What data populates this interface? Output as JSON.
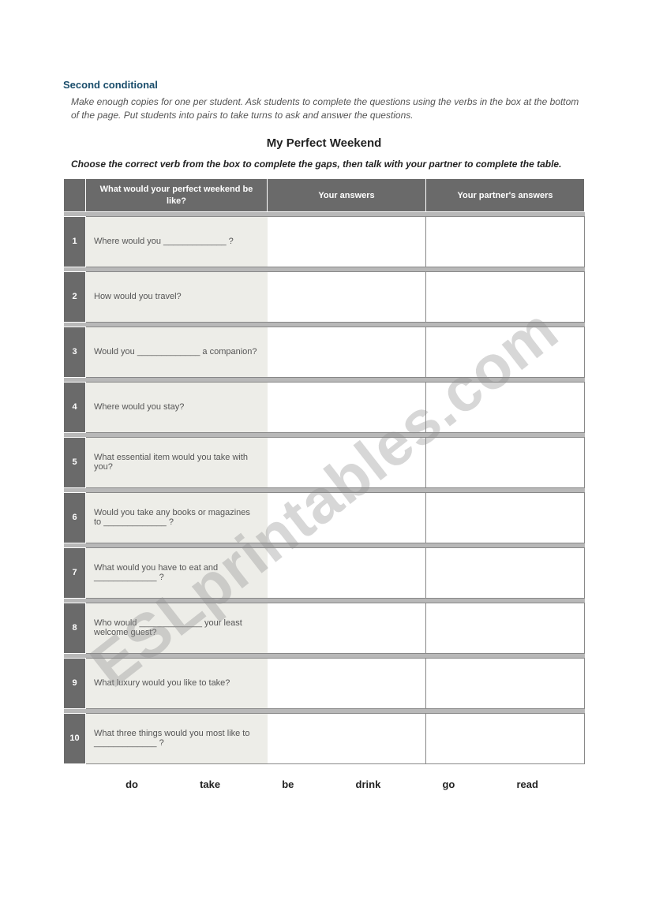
{
  "section_title": "Second conditional",
  "teacher_instructions": "Make enough copies for one per student. Ask students to complete the questions using the verbs in the box at the bottom of the page. Put students into pairs to take turns to ask and answer the questions.",
  "worksheet_title": "My Perfect Weekend",
  "worksheet_instructions": "Choose the correct verb from the box to complete the gaps, then talk with your partner to complete the table.",
  "headers": {
    "question": "What would your perfect weekend be like?",
    "yours": "Your answers",
    "partners": "Your partner's answers"
  },
  "rows": [
    {
      "n": "1",
      "q": "Where would you _____________ ?"
    },
    {
      "n": "2",
      "q": "How would you travel?"
    },
    {
      "n": "3",
      "q": "Would you _____________ a companion?"
    },
    {
      "n": "4",
      "q": "Where would you stay?"
    },
    {
      "n": "5",
      "q": "What essential item would you take with you?"
    },
    {
      "n": "6",
      "q": "Would you take any books or magazines to _____________ ?"
    },
    {
      "n": "7",
      "q": "What would you have to eat and _____________ ?"
    },
    {
      "n": "8",
      "q": "Who would _____________ your least welcome guest?"
    },
    {
      "n": "9",
      "q": "What luxury would you like to take?"
    },
    {
      "n": "10",
      "q": "What three things would you most like to _____________ ?"
    }
  ],
  "verbs": [
    "do",
    "take",
    "be",
    "drink",
    "go",
    "read"
  ],
  "watermark": "ESLprintables.com",
  "colors": {
    "title": "#1a4d6b",
    "header_bg": "#6a6a6a",
    "cell_bg": "#edede8",
    "spacer_bg": "#b8b8b8",
    "text_muted": "#555555"
  }
}
